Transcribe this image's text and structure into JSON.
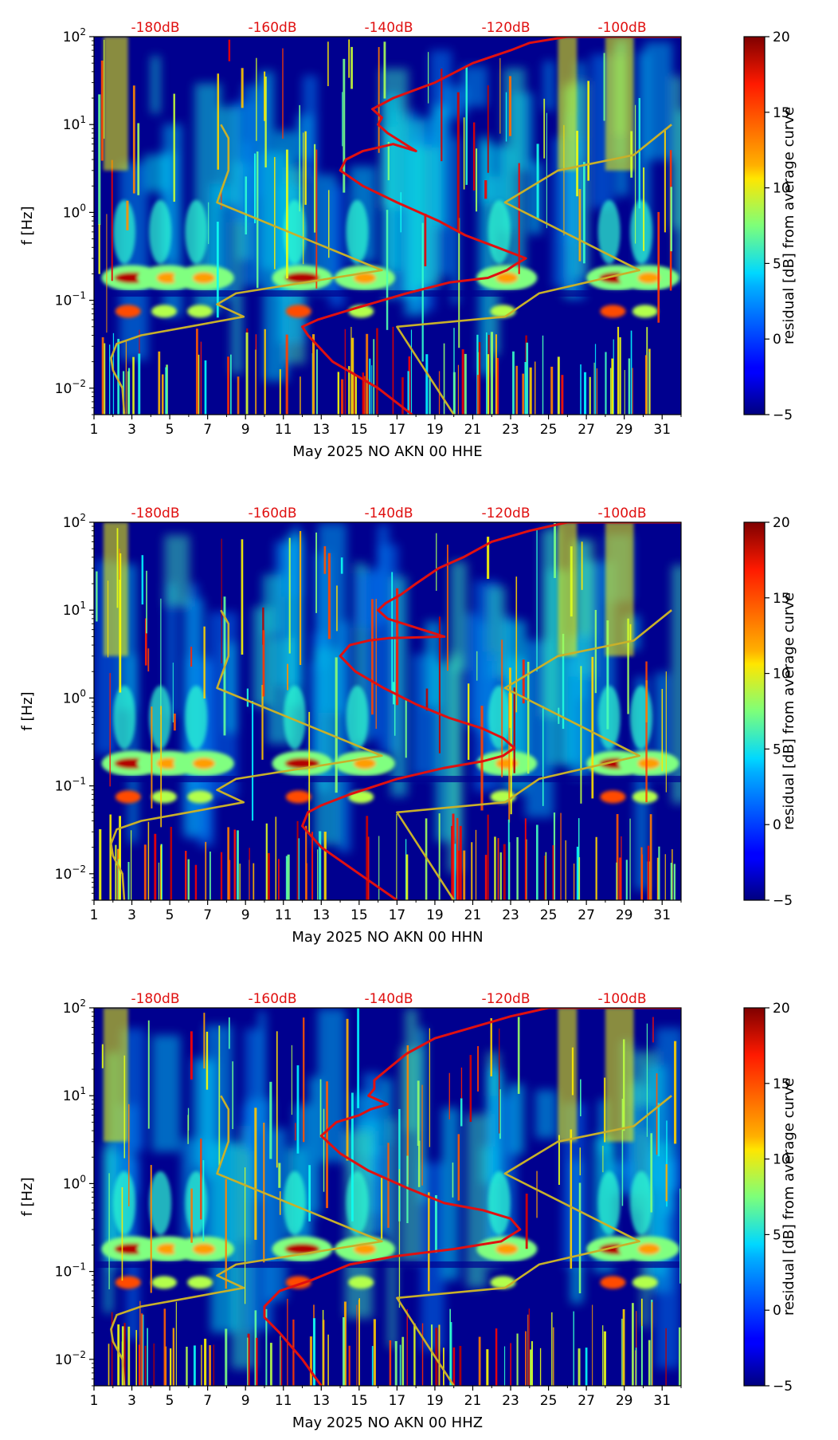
{
  "colors": {
    "background": "#00008f",
    "nlnm_nhnm": "#c8b02a",
    "mode_curve": "#e01010",
    "db_label": "#e01010"
  },
  "colorbar": {
    "label": "residual [dB] from average curve",
    "ticks": [
      "20",
      "15",
      "10",
      "5",
      "0",
      "−5"
    ],
    "range": [
      -5,
      20
    ],
    "colormap": "jet"
  },
  "chart_data": [
    {
      "type": "heatmap",
      "title": "",
      "xlabel": "May 2025 NO AKN 00 HHE",
      "ylabel": "f [Hz]",
      "yscale": "log",
      "xlim": [
        1,
        32
      ],
      "ylim": [
        0.005,
        100
      ],
      "x_ticks": [
        "1",
        "3",
        "5",
        "7",
        "9",
        "11",
        "13",
        "15",
        "17",
        "19",
        "21",
        "23",
        "25",
        "27",
        "29",
        "31"
      ],
      "y_ticks": [
        {
          "base": "10",
          "exp": "2"
        },
        {
          "base": "10",
          "exp": "1"
        },
        {
          "base": "10",
          "exp": "0"
        },
        {
          "base": "10",
          "exp": "−1"
        },
        {
          "base": "10",
          "exp": "−2"
        }
      ],
      "top_ticks": [
        "-180dB",
        "-160dB",
        "-140dB",
        "-120dB",
        "-100dB"
      ],
      "series": [
        {
          "name": "",
          "style": "nlnm",
          "x": [
            2.6,
            2.5,
            2.0,
            1.9,
            2.2,
            3.5,
            6.0,
            8.9,
            7.5,
            8.5,
            16.2,
            7.5,
            8.1,
            8.1,
            7.7
          ],
          "y": [
            0.005,
            0.01,
            0.016,
            0.022,
            0.032,
            0.04,
            0.05,
            0.065,
            0.09,
            0.12,
            0.22,
            1.3,
            3.0,
            7.0,
            10
          ]
        },
        {
          "name": "",
          "style": "nhnm",
          "x": [
            20.0,
            17.0,
            22.7,
            24.5,
            29.8,
            22.7,
            25.5,
            29.5,
            31.5
          ],
          "y": [
            0.005,
            0.05,
            0.065,
            0.12,
            0.22,
            1.3,
            3.0,
            4.5,
            10
          ]
        },
        {
          "name": "",
          "style": "mode",
          "x": [
            17.8,
            16.0,
            13.6,
            12.3,
            12.0,
            12.8,
            14.7,
            17.5,
            19.8,
            21.8,
            22.8,
            23.3,
            23.8,
            22.3,
            20.6,
            19.2,
            17.0,
            15.2,
            14.0,
            14.3,
            15.2,
            16.8,
            18.0,
            16.5,
            16.0,
            16.2,
            15.7,
            16.8,
            19.0,
            21.0,
            23.0,
            24.0,
            26.0,
            32.0
          ],
          "y": [
            0.005,
            0.01,
            0.02,
            0.04,
            0.05,
            0.06,
            0.08,
            0.12,
            0.16,
            0.18,
            0.22,
            0.26,
            0.3,
            0.4,
            0.55,
            0.8,
            1.3,
            2.0,
            3.0,
            4.0,
            5.0,
            6.0,
            5.0,
            8.0,
            10,
            12,
            15,
            20,
            30,
            50,
            70,
            85,
            100,
            100
          ]
        }
      ]
    },
    {
      "type": "heatmap",
      "title": "",
      "xlabel": "May 2025 NO AKN 00 HHN",
      "ylabel": "f [Hz]",
      "yscale": "log",
      "xlim": [
        1,
        32
      ],
      "ylim": [
        0.005,
        100
      ],
      "x_ticks": [
        "1",
        "3",
        "5",
        "7",
        "9",
        "11",
        "13",
        "15",
        "17",
        "19",
        "21",
        "23",
        "25",
        "27",
        "29",
        "31"
      ],
      "y_ticks": [
        {
          "base": "10",
          "exp": "2"
        },
        {
          "base": "10",
          "exp": "1"
        },
        {
          "base": "10",
          "exp": "0"
        },
        {
          "base": "10",
          "exp": "−1"
        },
        {
          "base": "10",
          "exp": "−2"
        }
      ],
      "top_ticks": [
        "-180dB",
        "-160dB",
        "-140dB",
        "-120dB",
        "-100dB"
      ],
      "series": [
        {
          "name": "",
          "style": "nlnm",
          "x": [
            2.6,
            2.5,
            2.0,
            1.9,
            2.2,
            3.5,
            6.0,
            8.9,
            7.5,
            8.5,
            16.2,
            7.5,
            8.1,
            8.1,
            7.7
          ],
          "y": [
            0.005,
            0.01,
            0.016,
            0.022,
            0.032,
            0.04,
            0.05,
            0.065,
            0.09,
            0.12,
            0.22,
            1.3,
            3.0,
            7.0,
            10
          ]
        },
        {
          "name": "",
          "style": "nhnm",
          "x": [
            20.0,
            17.0,
            22.7,
            24.5,
            29.8,
            22.7,
            25.5,
            29.5,
            31.5
          ],
          "y": [
            0.005,
            0.05,
            0.065,
            0.12,
            0.22,
            1.3,
            3.0,
            4.5,
            10
          ]
        },
        {
          "name": "",
          "style": "mode",
          "x": [
            17.0,
            15.0,
            13.0,
            12.0,
            12.3,
            13.0,
            14.5,
            17.0,
            19.5,
            21.5,
            22.6,
            23.2,
            22.6,
            21.5,
            19.7,
            18.0,
            16.3,
            14.8,
            14.0,
            14.5,
            15.5,
            16.6,
            19.5,
            16.5,
            16.0,
            16.4,
            17.2,
            18.0,
            19.2,
            20.5,
            22.0,
            24.0,
            26.0,
            32.0
          ],
          "y": [
            0.005,
            0.01,
            0.02,
            0.035,
            0.05,
            0.06,
            0.08,
            0.12,
            0.16,
            0.19,
            0.22,
            0.27,
            0.35,
            0.45,
            0.6,
            0.85,
            1.3,
            2.0,
            3.0,
            4.0,
            4.5,
            4.8,
            5.0,
            8.0,
            10,
            12,
            15,
            20,
            30,
            40,
            60,
            80,
            100,
            100
          ]
        }
      ]
    },
    {
      "type": "heatmap",
      "title": "",
      "xlabel": "May 2025 NO AKN 00 HHZ",
      "ylabel": "f [Hz]",
      "yscale": "log",
      "xlim": [
        1,
        32
      ],
      "ylim": [
        0.005,
        100
      ],
      "x_ticks": [
        "1",
        "3",
        "5",
        "7",
        "9",
        "11",
        "13",
        "15",
        "17",
        "19",
        "21",
        "23",
        "25",
        "27",
        "29",
        "31"
      ],
      "y_ticks": [
        {
          "base": "10",
          "exp": "2"
        },
        {
          "base": "10",
          "exp": "1"
        },
        {
          "base": "10",
          "exp": "0"
        },
        {
          "base": "10",
          "exp": "−1"
        },
        {
          "base": "10",
          "exp": "−2"
        }
      ],
      "top_ticks": [
        "-180dB",
        "-160dB",
        "-140dB",
        "-120dB",
        "-100dB"
      ],
      "series": [
        {
          "name": "",
          "style": "nlnm",
          "x": [
            2.6,
            2.5,
            2.0,
            1.9,
            2.2,
            3.5,
            6.0,
            8.9,
            7.5,
            8.5,
            16.2,
            7.5,
            8.1,
            8.1,
            7.7
          ],
          "y": [
            0.005,
            0.01,
            0.016,
            0.022,
            0.032,
            0.04,
            0.05,
            0.065,
            0.09,
            0.12,
            0.22,
            1.3,
            3.0,
            7.0,
            10
          ]
        },
        {
          "name": "",
          "style": "nhnm",
          "x": [
            20.0,
            17.0,
            22.7,
            24.5,
            29.8,
            22.7,
            25.5,
            29.5,
            31.5
          ],
          "y": [
            0.005,
            0.05,
            0.065,
            0.12,
            0.22,
            1.3,
            3.0,
            4.5,
            10
          ]
        },
        {
          "name": "",
          "style": "mode",
          "x": [
            13.0,
            12.0,
            10.8,
            10.0,
            10.0,
            10.8,
            12.5,
            14.5,
            17.0,
            20.0,
            22.5,
            23.5,
            23.0,
            21.5,
            19.5,
            17.5,
            15.5,
            14.0,
            13.0,
            13.8,
            15.0,
            15.6,
            16.5,
            15.5,
            15.8,
            15.8,
            16.5,
            17.5,
            19.0,
            21.0,
            23.0,
            25.0,
            32.0
          ],
          "y": [
            0.005,
            0.01,
            0.02,
            0.03,
            0.04,
            0.06,
            0.08,
            0.12,
            0.15,
            0.18,
            0.22,
            0.3,
            0.4,
            0.5,
            0.6,
            0.9,
            1.4,
            2.2,
            3.5,
            5.0,
            6.0,
            7.0,
            8.0,
            10,
            12,
            15,
            20,
            30,
            45,
            60,
            80,
            100,
            100
          ]
        }
      ]
    }
  ]
}
